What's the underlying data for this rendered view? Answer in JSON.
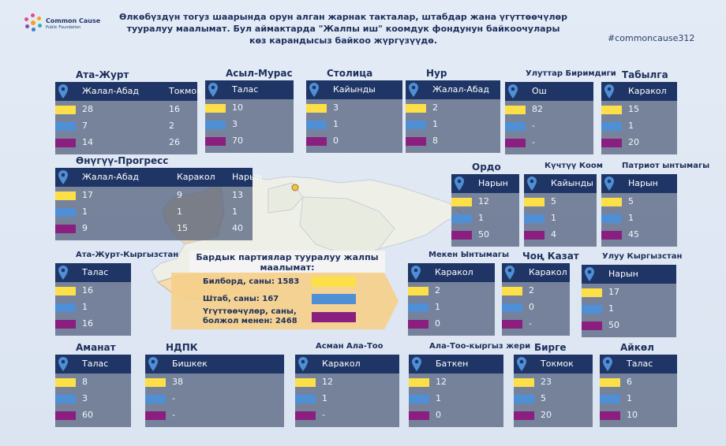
{
  "logo": {
    "name": "Common Cause",
    "sub": "Public Foundation",
    "colors": [
      "#e94b8a",
      "#f7a21b",
      "#2fb3a6",
      "#3c7ec8",
      "#8b4aa8"
    ]
  },
  "headline": "Өлкөбүздүн тогуз шаарында орун алган жарнак такталар, штабдар жана үгүттөөчүлөр тууралуу маалымат. Бул аймактарда \"Жалпы иш\" коомдук фондунун байкоочулары көз карандысыз байкоо жүргүзүүдө.",
  "hashtag": "#commoncause312",
  "legend": {
    "title": "Бардык партиялар тууралуу жалпы маалымат:",
    "billboards": "Билборд, саны: 1583",
    "hq": "Штаб, саны: 167",
    "agitators": "Үгүттөөчүлөр, саны, болжол менен: 2468"
  },
  "colors": {
    "billboard": "#fde047",
    "hq": "#4f8fd6",
    "agitators": "#8b1f80",
    "header": "#1f3566"
  },
  "parties": [
    {
      "id": "ata-jurt",
      "name": "Ата-Журт",
      "cities": [
        "Жалал-Абад",
        "Токмок"
      ],
      "values": [
        [
          "28",
          "16"
        ],
        [
          "7",
          "2"
        ],
        [
          "14",
          "26"
        ]
      ]
    },
    {
      "id": "asyl-muras",
      "name": "Асыл-Мурас",
      "cities": [
        "Талас"
      ],
      "values": [
        [
          "10"
        ],
        [
          "3"
        ],
        [
          "70"
        ]
      ]
    },
    {
      "id": "stolitsa",
      "name": "Столица",
      "cities": [
        "Кайынды"
      ],
      "values": [
        [
          "3"
        ],
        [
          "1"
        ],
        [
          "0"
        ]
      ]
    },
    {
      "id": "nur",
      "name": "Нур",
      "cities": [
        "Жалал-Абад"
      ],
      "values": [
        [
          "2"
        ],
        [
          "1"
        ],
        [
          "8"
        ]
      ]
    },
    {
      "id": "uluttar",
      "name": "Улуттар Биримдиги",
      "cities": [
        "Ош"
      ],
      "values": [
        [
          "82"
        ],
        [
          "-"
        ],
        [
          "-"
        ]
      ]
    },
    {
      "id": "tabylga",
      "name": "Табылга",
      "cities": [
        "Каракол"
      ],
      "values": [
        [
          "15"
        ],
        [
          "1"
        ],
        [
          "20"
        ]
      ]
    },
    {
      "id": "onuguu",
      "name": "Өнүгүү-Прогресс",
      "cities": [
        "Жалал-Абад",
        "Каракол",
        "Нарын"
      ],
      "values": [
        [
          "17",
          "9",
          "13"
        ],
        [
          "1",
          "1",
          "1"
        ],
        [
          "9",
          "15",
          "40"
        ]
      ]
    },
    {
      "id": "ordo",
      "name": "Ордо",
      "cities": [
        "Нарын"
      ],
      "values": [
        [
          "12"
        ],
        [
          "1"
        ],
        [
          "50"
        ]
      ]
    },
    {
      "id": "kuchtuu",
      "name": "Күчтүү Коом",
      "cities": [
        "Кайынды"
      ],
      "values": [
        [
          "5"
        ],
        [
          "1"
        ],
        [
          "4"
        ]
      ]
    },
    {
      "id": "patriot",
      "name": "Патриот ынтымагы",
      "cities": [
        "Нарын"
      ],
      "values": [
        [
          "5"
        ],
        [
          "1"
        ],
        [
          "45"
        ]
      ]
    },
    {
      "id": "ata-jurt-kg",
      "name": "Ата-Журт-Кыргызстан",
      "cities": [
        "Талас"
      ],
      "values": [
        [
          "16"
        ],
        [
          "1"
        ],
        [
          "16"
        ]
      ]
    },
    {
      "id": "meken",
      "name": "Мекен Ынтымагы",
      "cities": [
        "Каракол"
      ],
      "values": [
        [
          "2"
        ],
        [
          "1"
        ],
        [
          "0"
        ]
      ]
    },
    {
      "id": "chon-kazat",
      "name": "Чоң Казат",
      "cities": [
        "Каракол"
      ],
      "values": [
        [
          "2"
        ],
        [
          "0"
        ],
        [
          "-"
        ]
      ]
    },
    {
      "id": "uluu",
      "name": "Улуу Кыргызстан",
      "cities": [
        "Нарын"
      ],
      "values": [
        [
          "17"
        ],
        [
          "1"
        ],
        [
          "50"
        ]
      ]
    },
    {
      "id": "amanat",
      "name": "Аманат",
      "cities": [
        "Талас"
      ],
      "values": [
        [
          "8"
        ],
        [
          "3"
        ],
        [
          "60"
        ]
      ]
    },
    {
      "id": "ndpk",
      "name": "НДПК",
      "cities": [
        "Бишкек"
      ],
      "values": [
        [
          "38"
        ],
        [
          "-"
        ],
        [
          "-"
        ]
      ]
    },
    {
      "id": "asman",
      "name": "Асман Ала-Тоо",
      "cities": [
        "Каракол"
      ],
      "values": [
        [
          "12"
        ],
        [
          "1"
        ],
        [
          "-"
        ]
      ]
    },
    {
      "id": "ala-too",
      "name": "Ала-Тоо-кыргыз жери",
      "cities": [
        "Баткен"
      ],
      "values": [
        [
          "12"
        ],
        [
          "1"
        ],
        [
          "0"
        ]
      ]
    },
    {
      "id": "birge",
      "name": "Бирге",
      "cities": [
        "Токмок"
      ],
      "values": [
        [
          "23"
        ],
        [
          "5"
        ],
        [
          "20"
        ]
      ]
    },
    {
      "id": "aikol",
      "name": "Айкөл",
      "cities": [
        "Талас"
      ],
      "values": [
        [
          "6"
        ],
        [
          "1"
        ],
        [
          "10"
        ]
      ]
    }
  ]
}
